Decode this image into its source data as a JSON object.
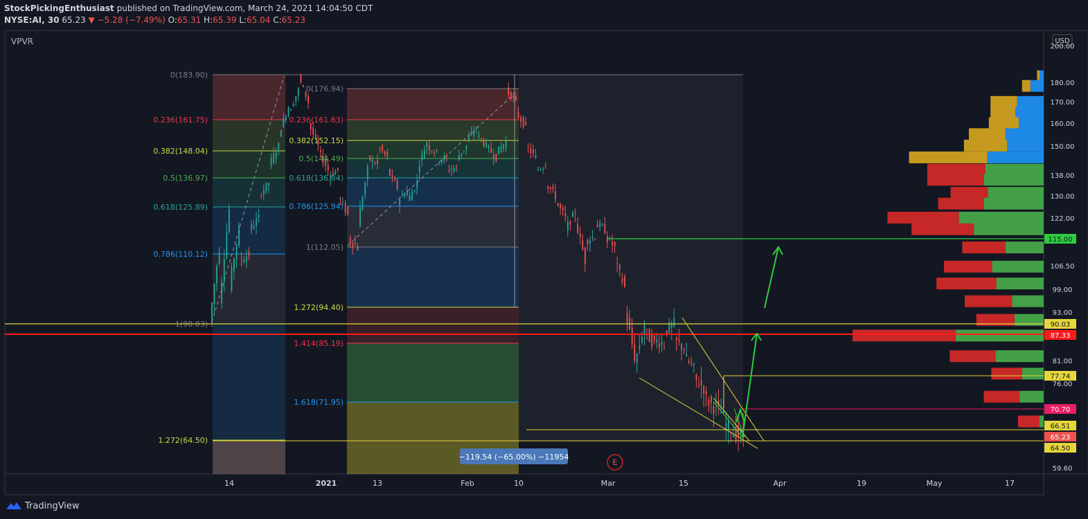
{
  "header": {
    "author": "StockPickingEnthusiast",
    "published_text": "published on TradingView.com, March 24, 2021 14:04:50 CDT",
    "symbol": "NYSE:AI, 30",
    "last_price": "65.23",
    "change": "▼ −5.28 (−7.49%)",
    "open_label": "O:",
    "open": "65.31",
    "high_label": "H:",
    "high": "65.39",
    "low_label": "L:",
    "low": "65.04",
    "close_label": "C:",
    "close": "65.23"
  },
  "indicator_label": "VPVR",
  "currency": "USD",
  "footer_brand": "TradingView",
  "measure_label": "−119.54 (−65.00%) −11954",
  "earnings_marker": "E",
  "colors": {
    "bg": "#131722",
    "up": "#26a69a",
    "down": "#ef5350",
    "vp_up": "#43a047",
    "vp_down": "#c62828",
    "vp_buy_va": "#1e88e5",
    "vp_sell_va": "#c59a1f",
    "trend_yellow": "#e6d63c",
    "arrow_green": "#2ecc40",
    "red_line": "#ff1a1a"
  },
  "chart_data": {
    "type": "candlestick",
    "x_ticks": [
      "14",
      "2021",
      "13",
      "Feb",
      "10",
      "Mar",
      "15",
      "Apr",
      "19",
      "May",
      "17"
    ],
    "y_ticks": [
      "200.00",
      "180.00",
      "170.00",
      "160.00",
      "150.00",
      "138.00",
      "130.00",
      "122.00",
      "115.00",
      "106.50",
      "99.00",
      "93.00",
      "90.03",
      "87.33",
      "81.00",
      "77.74",
      "76.00",
      "70.70",
      "66.51",
      "65.23",
      "64.50",
      "59.60"
    ],
    "y_scale": "log",
    "price_path": [
      [
        90,
        112
      ],
      [
        95,
        125
      ],
      [
        100,
        118
      ],
      [
        108,
        110
      ],
      [
        118,
        122
      ],
      [
        130,
        135
      ],
      [
        142,
        150
      ],
      [
        155,
        168
      ],
      [
        165,
        176
      ],
      [
        183,
        170
      ],
      [
        160,
        150
      ],
      [
        148,
        140
      ],
      [
        138,
        140
      ],
      [
        130,
        123
      ],
      [
        115,
        112
      ],
      [
        120,
        140
      ],
      [
        145,
        142
      ],
      [
        150,
        145
      ],
      [
        140,
        133
      ],
      [
        128,
        132
      ],
      [
        128,
        135
      ],
      [
        140,
        152
      ],
      [
        150,
        147
      ],
      [
        144,
        145
      ],
      [
        140,
        141
      ],
      [
        145,
        150
      ],
      [
        152,
        158
      ],
      [
        155,
        150
      ],
      [
        150,
        145
      ],
      [
        147,
        152
      ],
      [
        176,
        170
      ],
      [
        165,
        158
      ],
      [
        150,
        145
      ],
      [
        140,
        142
      ],
      [
        135,
        130
      ],
      [
        128,
        122
      ],
      [
        118,
        124
      ],
      [
        121,
        108
      ],
      [
        114,
        116
      ],
      [
        120,
        118
      ],
      [
        116,
        112
      ],
      [
        108,
        100
      ],
      [
        94,
        82
      ],
      [
        80,
        90
      ],
      [
        88,
        85
      ],
      [
        86,
        85
      ],
      [
        88,
        90
      ],
      [
        86,
        84
      ],
      [
        82,
        79
      ],
      [
        77,
        75
      ],
      [
        73,
        71
      ],
      [
        72,
        69
      ],
      [
        68,
        66
      ],
      [
        66,
        65.23
      ]
    ],
    "fib_retracements": [
      {
        "levels": [
          "0(183.90)",
          "0.236(161.75)",
          "0.382(148.04)",
          "0.5(136.97)",
          "0.618(125.89)",
          "0.786(110.12)",
          "1(90.03)",
          "1.272(64.50)"
        ]
      },
      {
        "levels": [
          "0(176.94)",
          "0.236(161.63)",
          "0.382(152.15)",
          "0.5(144.49)",
          "0.618(136.84)",
          "0.786(125.94)",
          "1(112.05)",
          "1.272(94.40)",
          "1.414(85.19)",
          "1.618(71.95)"
        ]
      }
    ],
    "horizontal_levels": [
      {
        "label": "115.00",
        "color": "#2ecc40"
      },
      {
        "label": "90.03",
        "color": "#e6d63c"
      },
      {
        "label": "87.33",
        "color": "#ff1a1a"
      },
      {
        "label": "77.74",
        "color": "#e6d63c"
      },
      {
        "label": "70.70",
        "color": "#e91e63"
      },
      {
        "label": "66.51",
        "color": "#e6d63c"
      },
      {
        "label": "65.23",
        "color": "#ef5350"
      },
      {
        "label": "64.50",
        "color": "#e6d63c"
      }
    ],
    "volume_profile": [
      {
        "price": 183,
        "down": 3,
        "up": 5
      },
      {
        "price": 178,
        "down": 10,
        "up": 16
      },
      {
        "price": 170,
        "down": 32,
        "up": 32
      },
      {
        "price": 165,
        "down": 30,
        "up": 34
      },
      {
        "price": 160,
        "down": 36,
        "up": 30
      },
      {
        "price": 155,
        "down": 44,
        "up": 46
      },
      {
        "price": 150,
        "down": 52,
        "up": 44
      },
      {
        "price": 145,
        "down": 94,
        "up": 68
      },
      {
        "price": 140,
        "down": 70,
        "up": 70
      },
      {
        "price": 136,
        "down": 68,
        "up": 72
      },
      {
        "price": 131,
        "down": 45,
        "up": 67
      },
      {
        "price": 127,
        "down": 55,
        "up": 72
      },
      {
        "price": 122,
        "down": 86,
        "up": 102
      },
      {
        "price": 118,
        "down": 75,
        "up": 84
      },
      {
        "price": 112,
        "down": 52,
        "up": 46
      },
      {
        "price": 106,
        "down": 58,
        "up": 62
      },
      {
        "price": 101,
        "down": 72,
        "up": 57
      },
      {
        "price": 96,
        "down": 57,
        "up": 38
      },
      {
        "price": 91,
        "down": 46,
        "up": 35
      },
      {
        "price": 87,
        "down": 124,
        "up": 106
      },
      {
        "price": 82,
        "down": 55,
        "up": 58
      },
      {
        "price": 78,
        "down": 37,
        "up": 26
      },
      {
        "price": 73,
        "down": 43,
        "up": 29
      },
      {
        "price": 68,
        "down": 26,
        "up": 5
      }
    ]
  }
}
